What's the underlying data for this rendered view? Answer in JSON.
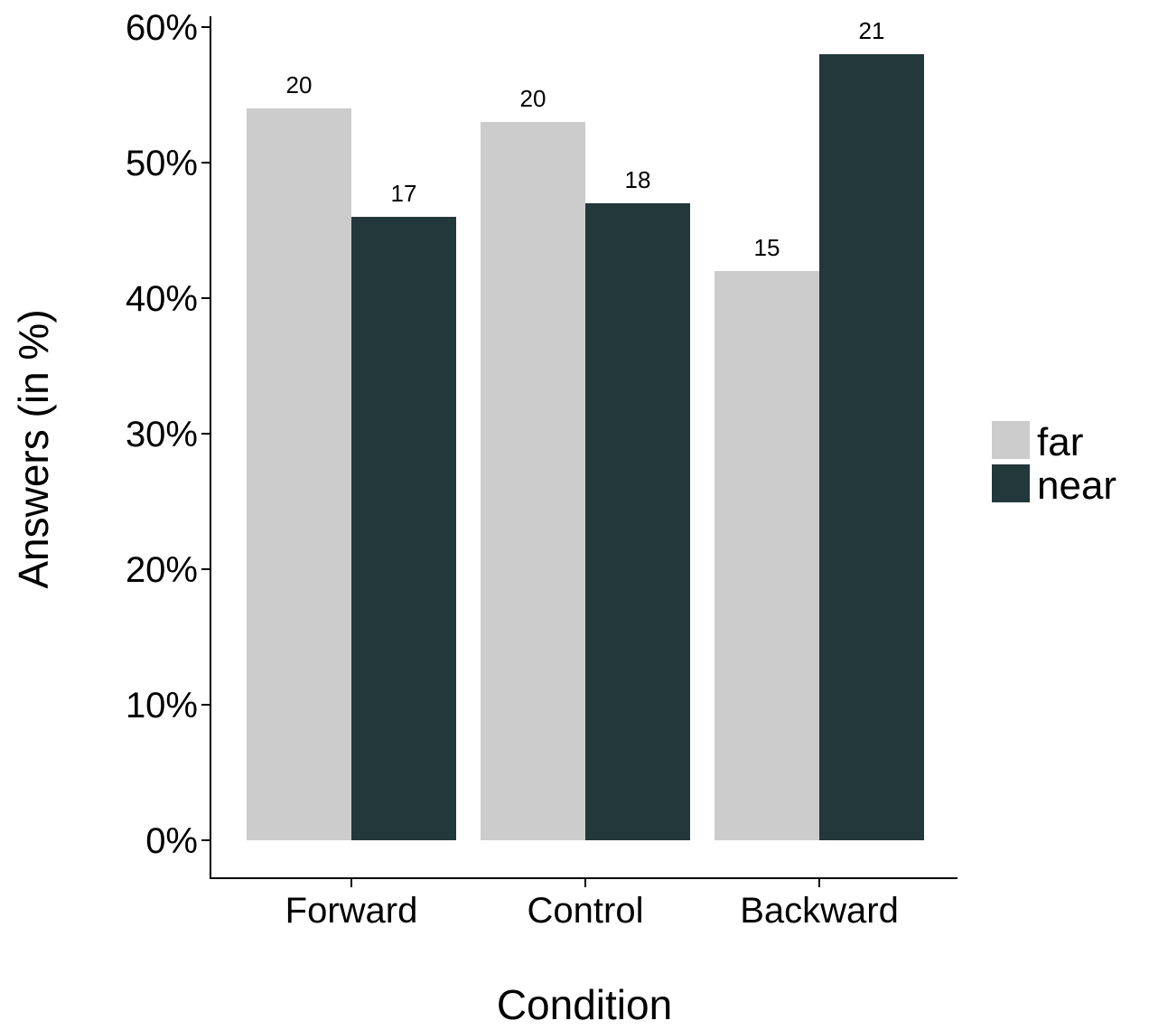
{
  "chart_data": {
    "type": "bar",
    "title": "",
    "xlabel": "Condition",
    "ylabel": "Answers (in %)",
    "categories": [
      "Forward",
      "Control",
      "Backward"
    ],
    "ylim": [
      0,
      60
    ],
    "yticks": [
      0,
      10,
      20,
      30,
      40,
      50,
      60
    ],
    "ytick_labels": [
      "0%",
      "10%",
      "20%",
      "30%",
      "40%",
      "50%",
      "60%"
    ],
    "grid": false,
    "legend_position": "right",
    "series": [
      {
        "name": "far",
        "color": "#cccccc",
        "values": [
          54,
          53,
          42
        ],
        "labels": [
          "20",
          "20",
          "15"
        ]
      },
      {
        "name": "near",
        "color": "#23383a",
        "values": [
          46,
          47,
          58
        ],
        "labels": [
          "17",
          "18",
          "21"
        ]
      }
    ]
  }
}
